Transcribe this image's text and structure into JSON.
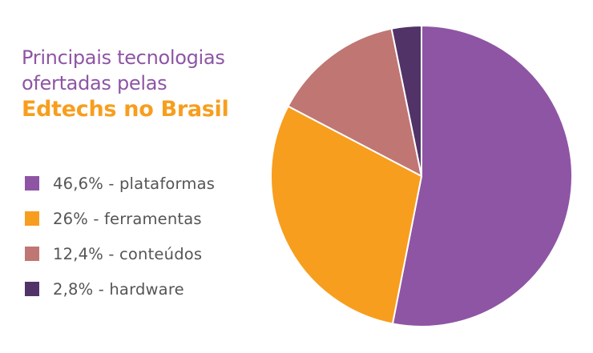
{
  "title": {
    "line1": "Principais tecnologias",
    "line2": "ofertadas pelas",
    "line3": "Edtechs no Brasil"
  },
  "colors": {
    "title_text": "#8E55A4",
    "title_highlight": "#F79E1E",
    "slice_border": "#ffffff"
  },
  "legend": [
    {
      "label": "46,6% - plataformas",
      "color": "#8E55A4"
    },
    {
      "label": "26% - ferramentas",
      "color": "#F79E1E"
    },
    {
      "label": "12,4% - conteúdos",
      "color": "#C07673"
    },
    {
      "label": "2,8% - hardware",
      "color": "#513368"
    }
  ],
  "chart_data": {
    "type": "pie",
    "categories": [
      "plataformas",
      "ferramentas",
      "conteúdos",
      "hardware"
    ],
    "values": [
      46.6,
      26,
      12.4,
      2.8
    ],
    "colors": [
      "#8E55A4",
      "#F79E1E",
      "#C07673",
      "#513368"
    ],
    "start_angle": "12 o'clock",
    "direction": "clockwise",
    "title": "Principais tecnologias ofertadas pelas Edtechs no Brasil",
    "legend_position": "left"
  }
}
